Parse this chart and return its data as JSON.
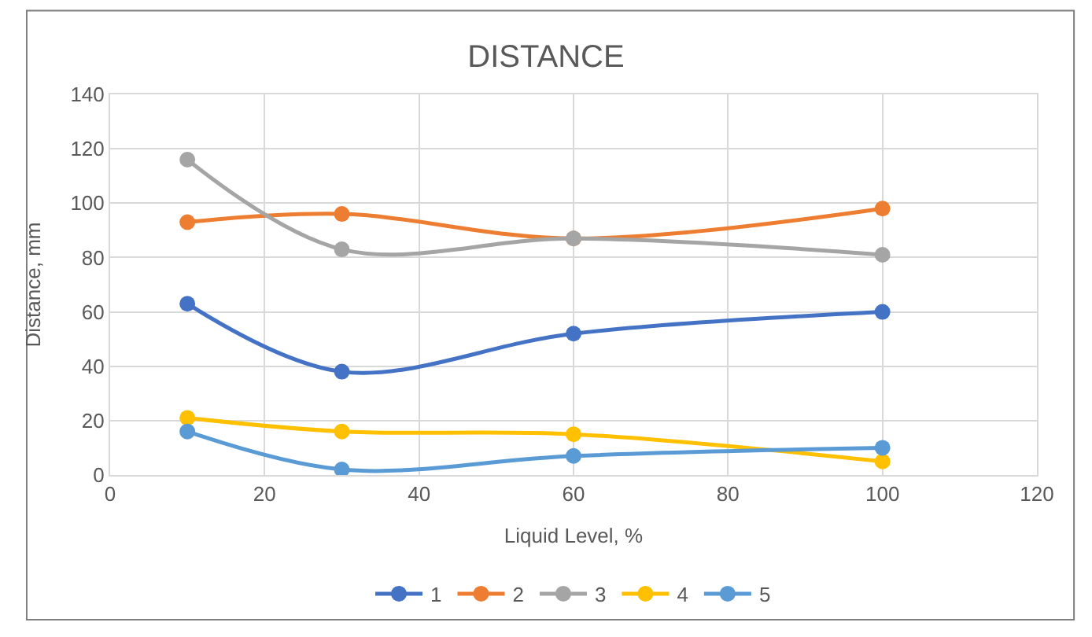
{
  "chart_data": {
    "type": "line",
    "title": "DISTANCE",
    "xlabel": "Liquid Level, %",
    "ylabel": "Distance, mm",
    "x": [
      10,
      30,
      60,
      100
    ],
    "series": [
      {
        "name": "1",
        "color": "#4472c4",
        "values": [
          63,
          38,
          52,
          60
        ]
      },
      {
        "name": "2",
        "color": "#ed7d31",
        "values": [
          93,
          96,
          87,
          98
        ]
      },
      {
        "name": "3",
        "color": "#a5a5a5",
        "values": [
          116,
          83,
          87,
          81
        ]
      },
      {
        "name": "4",
        "color": "#ffc000",
        "values": [
          21,
          16,
          15,
          5
        ]
      },
      {
        "name": "5",
        "color": "#5b9bd5",
        "values": [
          16,
          2,
          7,
          10
        ]
      }
    ],
    "xlim": [
      0,
      120
    ],
    "xticks": [
      0,
      20,
      40,
      60,
      80,
      100,
      120
    ],
    "ylim": [
      0,
      140
    ],
    "yticks": [
      0,
      20,
      40,
      60,
      80,
      100,
      120,
      140
    ],
    "grid": true,
    "legend": "bottom",
    "marker": "circle",
    "line_style": "solid"
  }
}
